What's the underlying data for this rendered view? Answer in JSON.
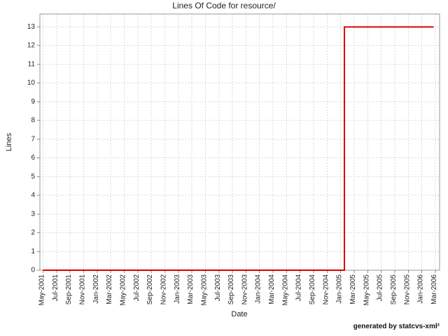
{
  "footer": {
    "credit": "generated by statcvs-xml²"
  },
  "chart_data": {
    "type": "line",
    "step_interpolation": true,
    "title": "Lines Of Code for resource/",
    "xlabel": "Date",
    "ylabel": "Lines",
    "x_tick_labels": [
      "May-2001",
      "Jul-2001",
      "Sep-2001",
      "Nov-2001",
      "Jan-2002",
      "Mar-2002",
      "May-2002",
      "Jul-2002",
      "Sep-2002",
      "Nov-2002",
      "Jan-2003",
      "Mar-2003",
      "May-2003",
      "Jul-2003",
      "Sep-2003",
      "Nov-2003",
      "Jan-2004",
      "Mar-2004",
      "May-2004",
      "Jul-2004",
      "Sep-2004",
      "Nov-2004",
      "Jan-2005",
      "Mar-2005",
      "May-2005",
      "Jul-2005",
      "Sep-2005",
      "Nov-2005",
      "Jan-2006",
      "Mar-2006"
    ],
    "y_ticks": [
      0,
      1,
      2,
      3,
      4,
      5,
      6,
      7,
      8,
      9,
      10,
      11,
      12,
      13
    ],
    "ylim": [
      0,
      13.69
    ],
    "grid": true,
    "grid_style": "dashed",
    "legend": "none",
    "colors": {
      "series": "#dd0000",
      "grid": "#d9d9d9",
      "border": "#999999",
      "tick": "#888888",
      "text": "#222222",
      "background": "#ffffff"
    },
    "series": [
      {
        "name": "Lines of Code",
        "color": "#dd0000",
        "points": [
          {
            "x_index": 0,
            "date": "May-2001",
            "value": 0
          },
          {
            "x_index": 22.27,
            "date": "Jan-2005",
            "value": 0
          },
          {
            "x_index": 22.27,
            "date": "Jan-2005",
            "value": 13
          },
          {
            "x_index": 28.86,
            "date": "Mar-2006",
            "value": 13
          }
        ]
      }
    ]
  }
}
